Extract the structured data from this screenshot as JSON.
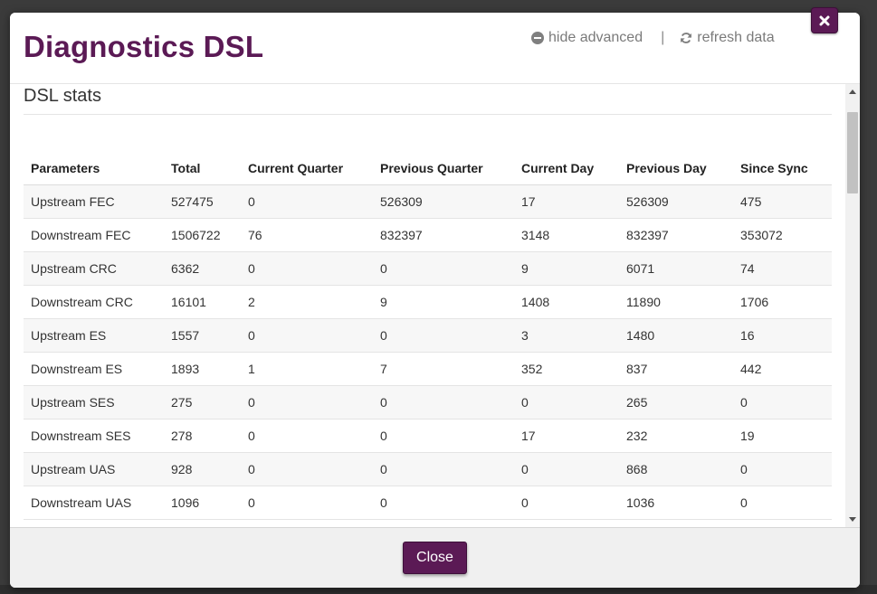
{
  "modal": {
    "title": "Diagnostics DSL",
    "hide_advanced": "hide advanced",
    "separator": "|",
    "refresh_data": "refresh data",
    "close_label": "Close"
  },
  "section": {
    "title": "DSL stats"
  },
  "table": {
    "headers": [
      "Parameters",
      "Total",
      "Current Quarter",
      "Previous Quarter",
      "Current Day",
      "Previous Day",
      "Since Sync"
    ],
    "rows": [
      [
        "Upstream FEC",
        "527475",
        "0",
        "526309",
        "17",
        "526309",
        "475"
      ],
      [
        "Downstream FEC",
        "1506722",
        "76",
        "832397",
        "3148",
        "832397",
        "353072"
      ],
      [
        "Upstream CRC",
        "6362",
        "0",
        "0",
        "9",
        "6071",
        "74"
      ],
      [
        "Downstream CRC",
        "16101",
        "2",
        "9",
        "1408",
        "11890",
        "1706"
      ],
      [
        "Upstream ES",
        "1557",
        "0",
        "0",
        "3",
        "1480",
        "16"
      ],
      [
        "Downstream ES",
        "1893",
        "1",
        "7",
        "352",
        "837",
        "442"
      ],
      [
        "Upstream SES",
        "275",
        "0",
        "0",
        "0",
        "265",
        "0"
      ],
      [
        "Downstream SES",
        "278",
        "0",
        "0",
        "17",
        "232",
        "19"
      ],
      [
        "Upstream UAS",
        "928",
        "0",
        "0",
        "0",
        "868",
        "0"
      ],
      [
        "Downstream UAS",
        "1096",
        "0",
        "0",
        "0",
        "1036",
        "0"
      ]
    ]
  },
  "colors": {
    "accent": "#5b1a55",
    "row_stripe": "#f7f7f7",
    "footer_bg": "#f0f0f0"
  },
  "icons": [
    "minus-circle-icon",
    "refresh-icon",
    "close-x-icon"
  ]
}
